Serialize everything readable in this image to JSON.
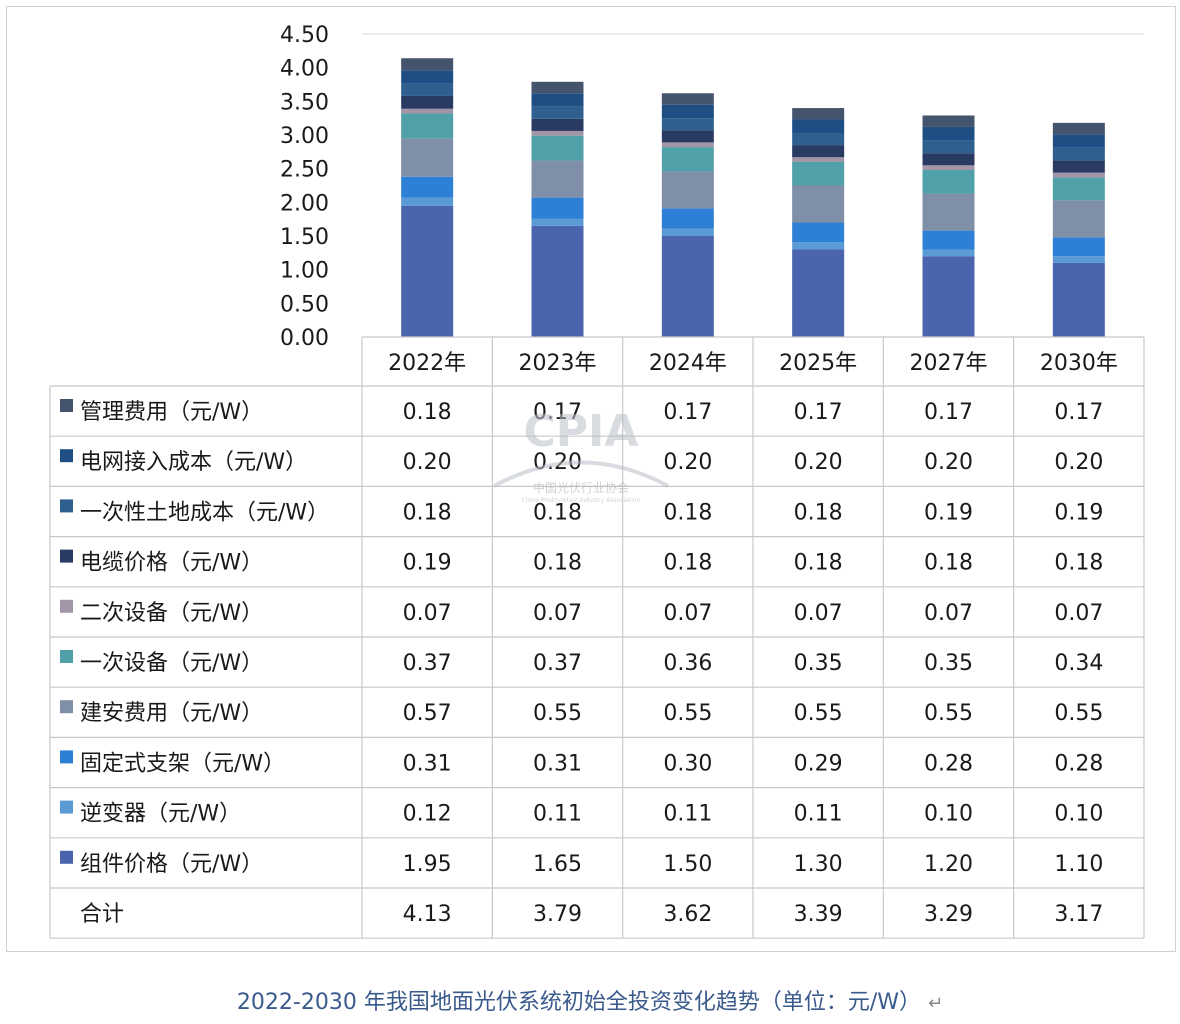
{
  "chart_data": {
    "type": "bar",
    "stacked": true,
    "categories": [
      "2022年",
      "2023年",
      "2024年",
      "2025年",
      "2027年",
      "2030年"
    ],
    "yticks": [
      "0.00",
      "0.50",
      "1.00",
      "1.50",
      "2.00",
      "2.50",
      "3.00",
      "3.50",
      "4.00",
      "4.50"
    ],
    "ylim": [
      0,
      4.5
    ],
    "series": [
      {
        "name": "组件价格（元/W）",
        "color": "#4a65ad",
        "values": [
          1.95,
          1.65,
          1.5,
          1.3,
          1.2,
          1.1
        ]
      },
      {
        "name": "逆变器（元/W）",
        "color": "#5b9bd5",
        "values": [
          0.12,
          0.11,
          0.11,
          0.11,
          0.1,
          0.1
        ]
      },
      {
        "name": "固定式支架（元/W）",
        "color": "#2e7fd6",
        "values": [
          0.31,
          0.31,
          0.3,
          0.29,
          0.28,
          0.28
        ]
      },
      {
        "name": "建安费用（元/W）",
        "color": "#7f8fa8",
        "values": [
          0.57,
          0.55,
          0.55,
          0.55,
          0.55,
          0.55
        ]
      },
      {
        "name": "一次设备（元/W）",
        "color": "#4fa0a8",
        "values": [
          0.37,
          0.37,
          0.36,
          0.35,
          0.35,
          0.34
        ]
      },
      {
        "name": "二次设备（元/W）",
        "color": "#a295a8",
        "values": [
          0.07,
          0.07,
          0.07,
          0.07,
          0.07,
          0.07
        ]
      },
      {
        "name": "电缆价格（元/W）",
        "color": "#2a3b63",
        "values": [
          0.19,
          0.18,
          0.18,
          0.18,
          0.18,
          0.18
        ]
      },
      {
        "name": "一次性土地成本（元/W）",
        "color": "#2f5f8e",
        "values": [
          0.18,
          0.18,
          0.18,
          0.18,
          0.19,
          0.19
        ]
      },
      {
        "name": "电网接入成本（元/W）",
        "color": "#1f4e85",
        "values": [
          0.2,
          0.2,
          0.2,
          0.2,
          0.2,
          0.2
        ]
      },
      {
        "name": "管理费用（元/W）",
        "color": "#45546d",
        "values": [
          0.18,
          0.17,
          0.17,
          0.17,
          0.17,
          0.17
        ]
      }
    ],
    "table_rows": [
      {
        "label": "管理费用（元/W）",
        "series_index": 9,
        "cells": [
          "0.18",
          "0.17",
          "0.17",
          "0.17",
          "0.17",
          "0.17"
        ]
      },
      {
        "label": "电网接入成本（元/W）",
        "series_index": 8,
        "cells": [
          "0.20",
          "0.20",
          "0.20",
          "0.20",
          "0.20",
          "0.20"
        ]
      },
      {
        "label": "一次性土地成本（元/W）",
        "series_index": 7,
        "cells": [
          "0.18",
          "0.18",
          "0.18",
          "0.18",
          "0.19",
          "0.19"
        ]
      },
      {
        "label": "电缆价格（元/W）",
        "series_index": 6,
        "cells": [
          "0.19",
          "0.18",
          "0.18",
          "0.18",
          "0.18",
          "0.18"
        ]
      },
      {
        "label": "二次设备（元/W）",
        "series_index": 5,
        "cells": [
          "0.07",
          "0.07",
          "0.07",
          "0.07",
          "0.07",
          "0.07"
        ]
      },
      {
        "label": "一次设备（元/W）",
        "series_index": 4,
        "cells": [
          "0.37",
          "0.37",
          "0.36",
          "0.35",
          "0.35",
          "0.34"
        ]
      },
      {
        "label": "建安费用（元/W）",
        "series_index": 3,
        "cells": [
          "0.57",
          "0.55",
          "0.55",
          "0.55",
          "0.55",
          "0.55"
        ]
      },
      {
        "label": "固定式支架（元/W）",
        "series_index": 2,
        "cells": [
          "0.31",
          "0.31",
          "0.30",
          "0.29",
          "0.28",
          "0.28"
        ]
      },
      {
        "label": "逆变器（元/W）",
        "series_index": 1,
        "cells": [
          "0.12",
          "0.11",
          "0.11",
          "0.11",
          "0.10",
          "0.10"
        ]
      },
      {
        "label": "组件价格（元/W）",
        "series_index": 0,
        "cells": [
          "1.95",
          "1.65",
          "1.50",
          "1.30",
          "1.20",
          "1.10"
        ]
      },
      {
        "label": "合计",
        "series_index": null,
        "cells": [
          "4.13",
          "3.79",
          "3.62",
          "3.39",
          "3.29",
          "3.17"
        ]
      }
    ],
    "legend": "table",
    "grid": false
  },
  "watermark": {
    "logo_text": "CPIA",
    "sub_text": "中国光伏行业协会",
    "sub_text_en": "China Photovoltaic Industry Association"
  },
  "caption": {
    "text": "2022-2030 年我国地面光伏系统初始全投资变化趋势（单位：元/W）",
    "mark": "↵"
  }
}
